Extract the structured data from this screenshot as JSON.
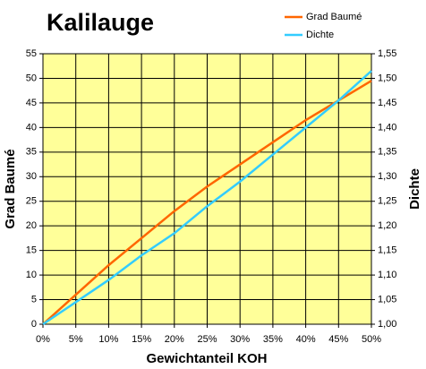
{
  "chart_data": {
    "type": "line",
    "title": "Kalilauge",
    "x_label": "Gewichtanteil KOH",
    "y_label": "Grad Baumé",
    "y2_label": "Dichte",
    "x": [
      0,
      5,
      10,
      15,
      20,
      25,
      30,
      35,
      40,
      45,
      50
    ],
    "series": [
      {
        "name": "Grad Baumé",
        "color": "#ff6600",
        "values": [
          0,
          6,
          12,
          17.5,
          23,
          28,
          32.5,
          37,
          41.5,
          45.5,
          49.5
        ]
      },
      {
        "name": "Dichte",
        "color": "#33ccff",
        "axis": "y2",
        "values": [
          1.0,
          1.045,
          1.09,
          1.14,
          1.185,
          1.24,
          1.29,
          1.345,
          1.4,
          1.455,
          1.515
        ]
      }
    ],
    "xlim": [
      0,
      50
    ],
    "xticks": [
      {
        "value": 0,
        "label": "0%"
      },
      {
        "value": 5,
        "label": "5%"
      },
      {
        "value": 10,
        "label": "10%"
      },
      {
        "value": 15,
        "label": "15%"
      },
      {
        "value": 20,
        "label": "20%"
      },
      {
        "value": 25,
        "label": "25%"
      },
      {
        "value": 30,
        "label": "30%"
      },
      {
        "value": 35,
        "label": "35%"
      },
      {
        "value": 40,
        "label": "40%"
      },
      {
        "value": 45,
        "label": "45%"
      },
      {
        "value": 50,
        "label": "50%"
      }
    ],
    "ylim": [
      0,
      55
    ],
    "yticks": [
      0,
      5,
      10,
      15,
      20,
      25,
      30,
      35,
      40,
      45,
      50,
      55
    ],
    "y2lim": [
      1.0,
      1.55
    ],
    "y2ticks": [
      {
        "value": 1.0,
        "label": "1,00"
      },
      {
        "value": 1.05,
        "label": "1,05"
      },
      {
        "value": 1.1,
        "label": "1,10"
      },
      {
        "value": 1.15,
        "label": "1,15"
      },
      {
        "value": 1.2,
        "label": "1,20"
      },
      {
        "value": 1.25,
        "label": "1,25"
      },
      {
        "value": 1.3,
        "label": "1,30"
      },
      {
        "value": 1.35,
        "label": "1,35"
      },
      {
        "value": 1.4,
        "label": "1,40"
      },
      {
        "value": 1.45,
        "label": "1,45"
      },
      {
        "value": 1.5,
        "label": "1,50"
      },
      {
        "value": 1.55,
        "label": "1,55"
      }
    ],
    "grid": true,
    "legend": "top-right",
    "plot_background": "#ffff99"
  }
}
